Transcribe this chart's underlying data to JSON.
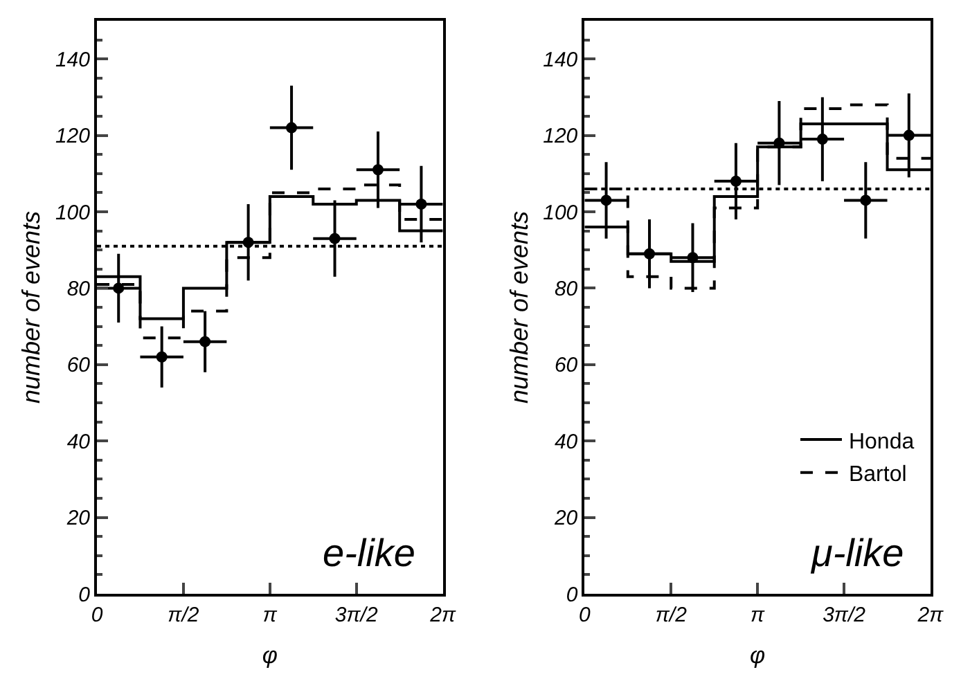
{
  "chart_data": [
    {
      "type": "scatter",
      "xlabel": "φ",
      "ylabel": "number of events",
      "annotations": [
        "e-like"
      ],
      "xlim": [
        0,
        6.2832
      ],
      "ylim": [
        0,
        150
      ],
      "xticks": [
        0,
        {
          "value": 1.5708,
          "label": "π/2"
        },
        {
          "value": 3.1416,
          "label": "π"
        },
        {
          "value": 4.7124,
          "label": "3π/2"
        },
        {
          "value": 6.2832,
          "label": "2π"
        }
      ],
      "yticks": [
        0,
        20,
        40,
        60,
        80,
        100,
        120,
        140
      ],
      "legend": false,
      "marker": "circle",
      "bins": [
        0,
        0.7854,
        1.5708,
        2.3562,
        3.1416,
        3.927,
        4.7124,
        5.4978,
        6.2832
      ],
      "ref_lines": [
        {
          "axis": "y",
          "value": 91,
          "line_style": "dotted",
          "color": "#000000"
        }
      ],
      "series": [
        {
          "type": "histogram",
          "color": "#000000",
          "line_style": "solid",
          "values": [
            83,
            72,
            80,
            92,
            104,
            102,
            103,
            95
          ]
        },
        {
          "type": "histogram",
          "color": "#000000",
          "line_style": "dashed",
          "values": [
            81,
            67,
            74,
            88,
            105,
            106,
            107,
            98
          ]
        },
        {
          "color": "#000000",
          "x": [
            0.3927,
            1.1781,
            1.9635,
            2.7489,
            3.5343,
            4.3197,
            5.1051,
            5.8905
          ],
          "values": [
            80,
            62,
            66,
            92,
            122,
            93,
            111,
            102
          ],
          "errors": [
            9,
            8,
            8,
            10,
            11,
            10,
            10,
            10
          ],
          "xerrors": [
            0.3927,
            0.3927,
            0.3927,
            0.3927,
            0.3927,
            0.3927,
            0.3927,
            0.3927
          ]
        }
      ]
    },
    {
      "type": "scatter",
      "xlabel": "φ",
      "ylabel": "number of events",
      "annotations": [
        "μ-like"
      ],
      "xlim": [
        0,
        6.2832
      ],
      "ylim": [
        0,
        150
      ],
      "xticks": [
        0,
        {
          "value": 1.5708,
          "label": "π/2"
        },
        {
          "value": 3.1416,
          "label": "π"
        },
        {
          "value": 4.7124,
          "label": "3π/2"
        },
        {
          "value": 6.2832,
          "label": "2π"
        }
      ],
      "yticks": [
        0,
        20,
        40,
        60,
        80,
        100,
        120,
        140
      ],
      "legend": "bottom right",
      "marker": "circle",
      "bins": [
        0,
        0.7854,
        1.5708,
        2.3562,
        3.1416,
        3.927,
        4.7124,
        5.4978,
        6.2832
      ],
      "ref_lines": [
        {
          "axis": "y",
          "value": 106,
          "line_style": "dotted",
          "color": "#000000"
        }
      ],
      "series": [
        {
          "type": "histogram",
          "name": "Honda",
          "color": "#000000",
          "line_style": "solid",
          "values": [
            96,
            89,
            87,
            104,
            117,
            123,
            123,
            111
          ]
        },
        {
          "type": "histogram",
          "name": "Bartol",
          "color": "#000000",
          "line_style": "dashed",
          "values": [
            106,
            83,
            80,
            101,
            117,
            127,
            128,
            114
          ]
        },
        {
          "color": "#000000",
          "x": [
            0.3927,
            1.1781,
            1.9635,
            2.7489,
            3.5343,
            4.3197,
            5.1051,
            5.8905
          ],
          "values": [
            103,
            89,
            88,
            108,
            118,
            119,
            103,
            120
          ],
          "errors": [
            10,
            9,
            9,
            10,
            11,
            11,
            10,
            11
          ],
          "xerrors": [
            0.3927,
            0.3927,
            0.3927,
            0.3927,
            0.3927,
            0.3927,
            0.3927,
            0.3927
          ]
        }
      ]
    }
  ]
}
